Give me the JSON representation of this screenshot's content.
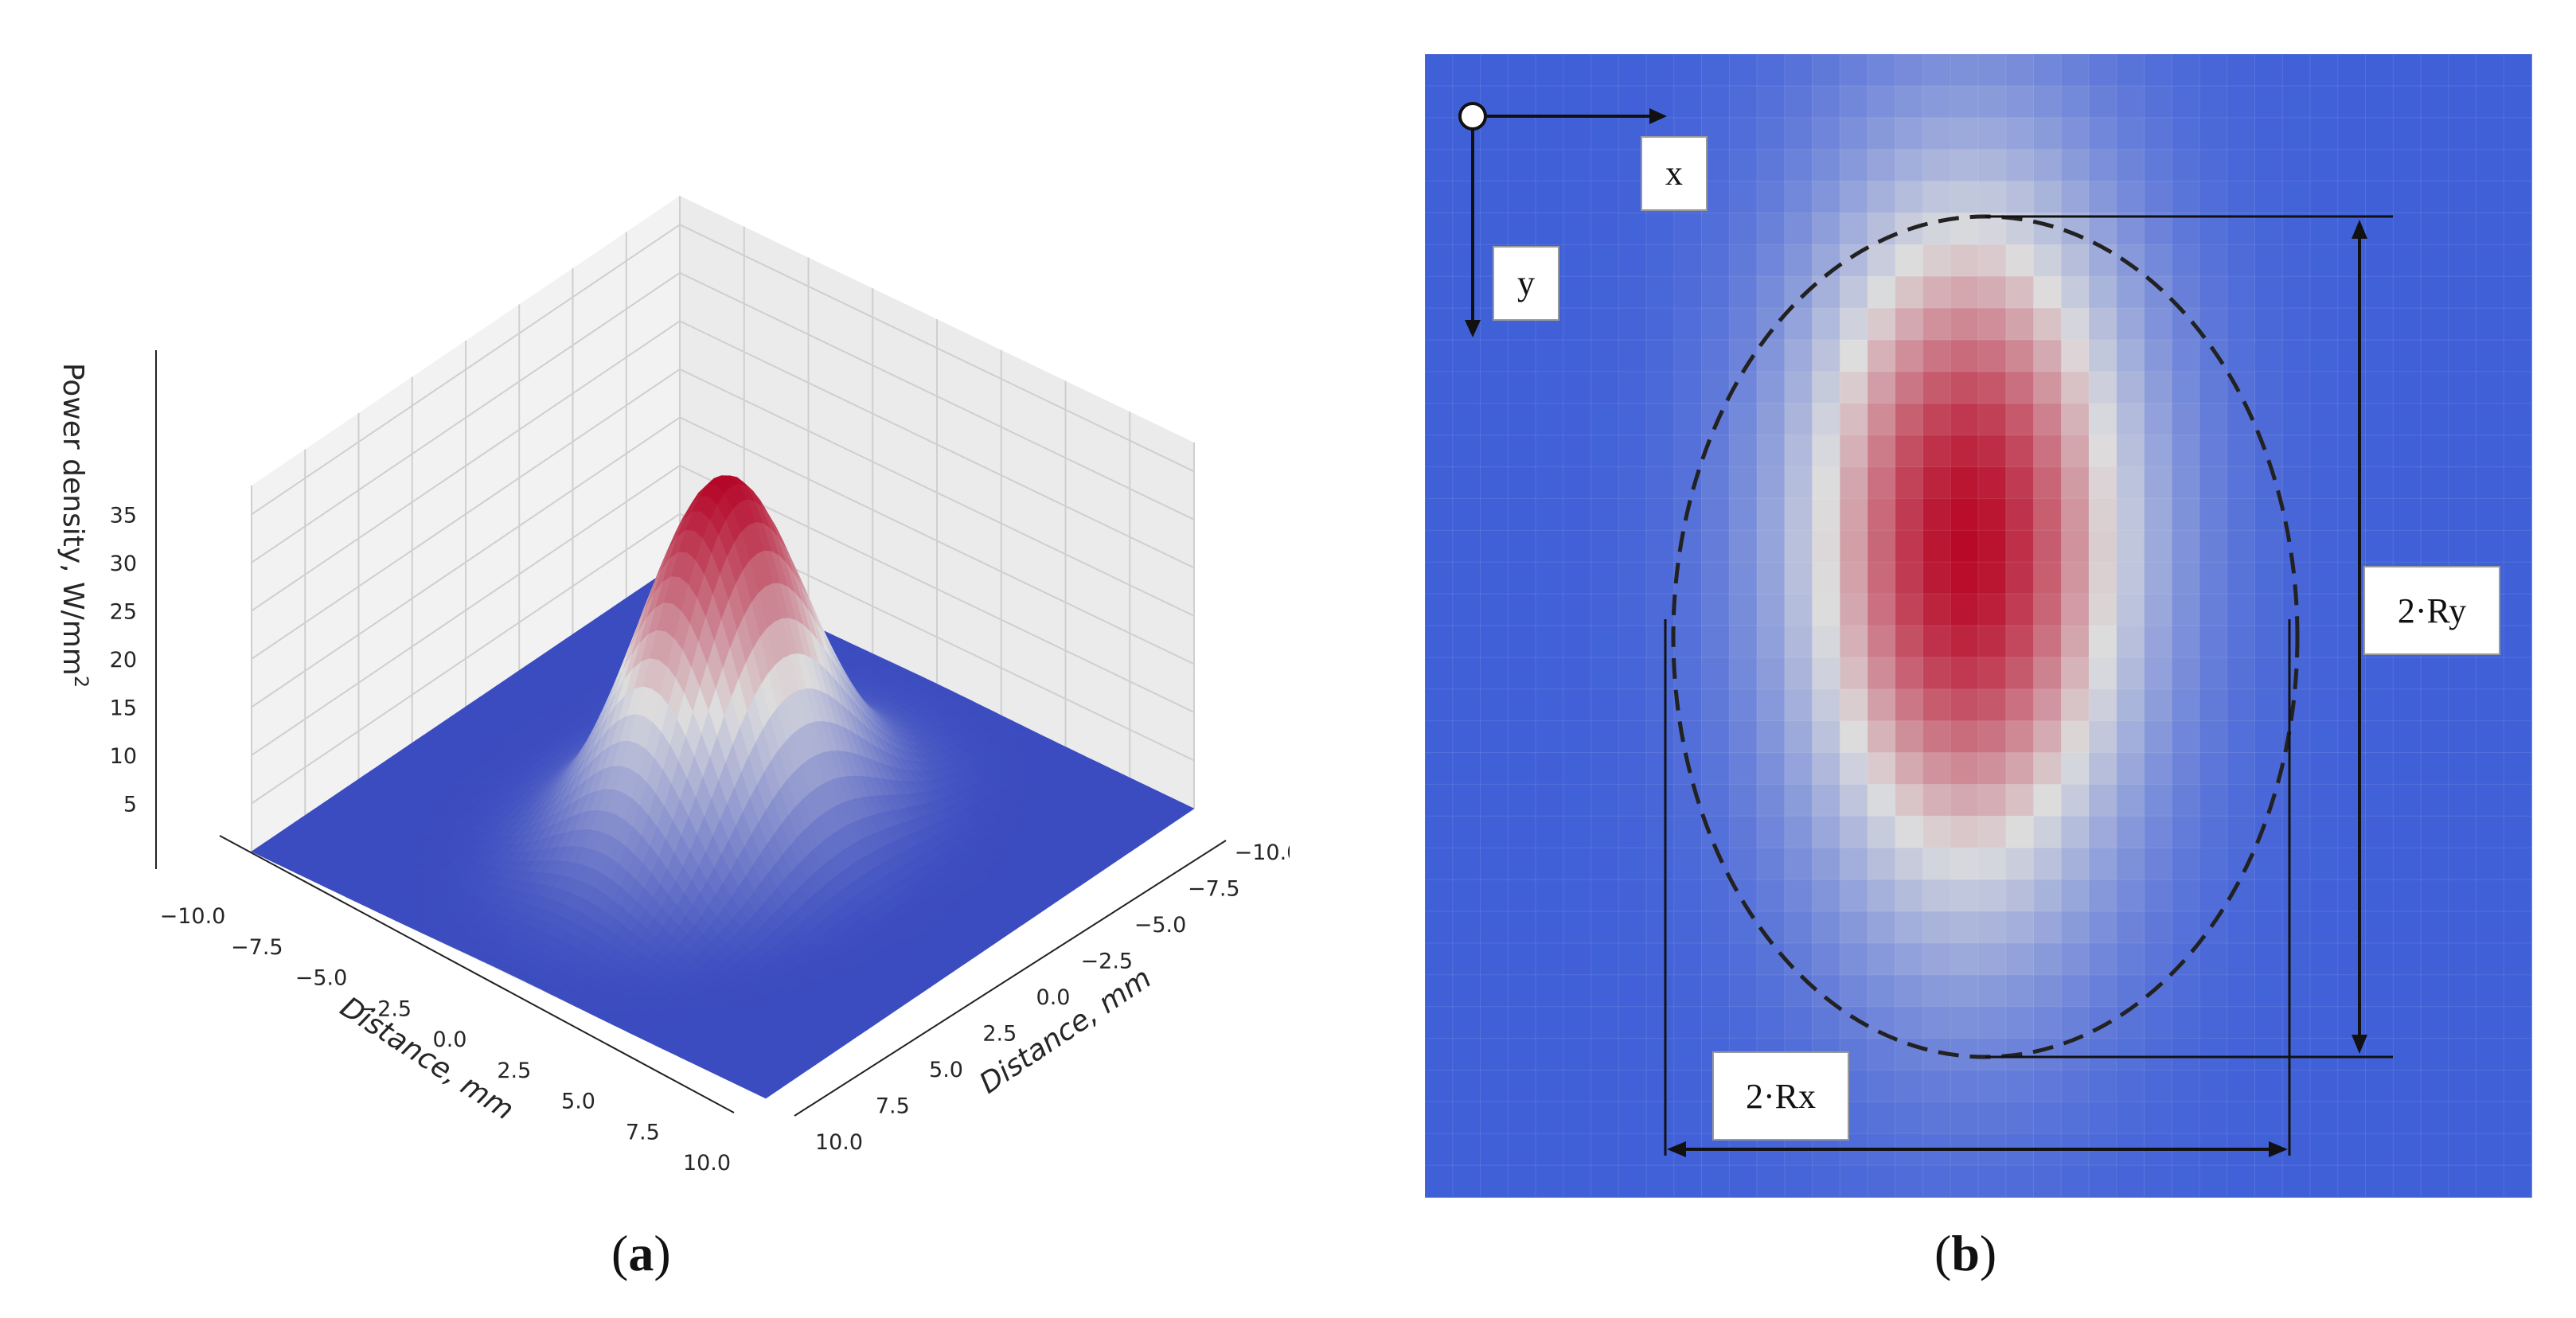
{
  "captions": {
    "a": {
      "open": "(",
      "letter": "a",
      "close": ")"
    },
    "b": {
      "open": "(",
      "letter": "b",
      "close": ")"
    }
  },
  "chart_data": [
    {
      "type": "surface3d",
      "panel": "a",
      "title": "",
      "zlabel": "Power density, W/mm",
      "zlabel_superscript": "2",
      "xlabel": "Distance, mm",
      "ylabel": "Distance, mm",
      "x_ticks": [
        "−10.0",
        "−7.5",
        "−5.0",
        "−2.5",
        "0.0",
        "2.5",
        "5.0",
        "7.5",
        "10.0"
      ],
      "y_ticks": [
        "−10.0",
        "−7.5",
        "−5.0",
        "−2.5",
        "0.0",
        "2.5",
        "5.0",
        "7.5",
        "10.0"
      ],
      "z_ticks": [
        "5",
        "10",
        "15",
        "20",
        "25",
        "30",
        "35"
      ],
      "xlim": [
        -10,
        10
      ],
      "ylim": [
        -10,
        10
      ],
      "zlim": [
        0,
        38
      ],
      "peak": 36.5,
      "sigma_x": 2.2,
      "sigma_y": 3.0,
      "colormap": "coolwarm",
      "colors": {
        "low": "#3b4cc0",
        "mid": "#dddddd",
        "high": "#b40426"
      }
    },
    {
      "type": "heatmap",
      "panel": "b",
      "title": "",
      "grid": [
        40,
        36
      ],
      "peak_x": 0.49,
      "peak_y": 0.43,
      "spread_x": 0.11,
      "spread_y": 0.23,
      "labels": {
        "x_axis": "x",
        "y_axis": "y",
        "width": "2·Rx",
        "height": "2·Ry"
      },
      "colors": {
        "background": "#3a52d0",
        "ellipse": "#222222"
      }
    }
  ]
}
